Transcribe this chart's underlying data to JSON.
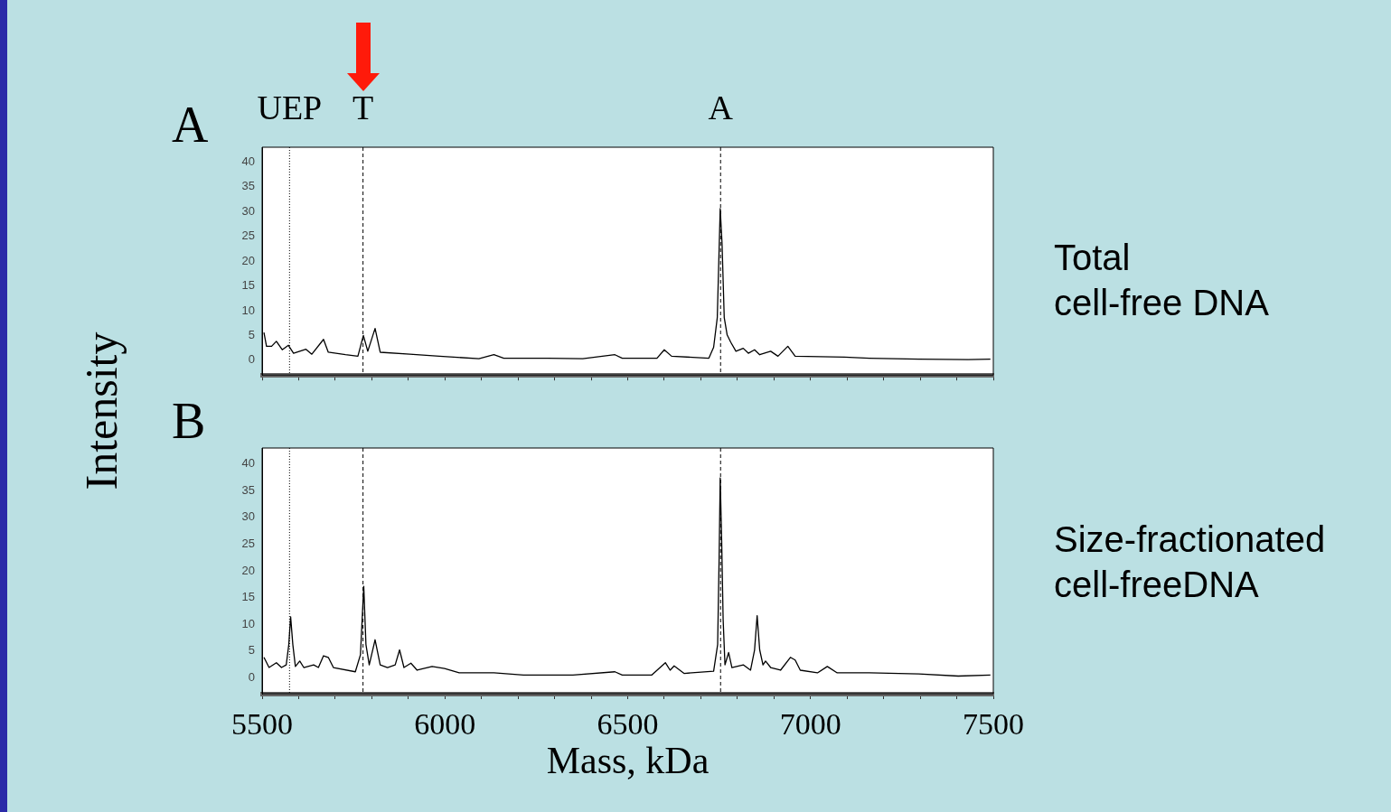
{
  "chart_data": [
    {
      "type": "line",
      "title": "A",
      "ylabel": "Intensity",
      "annotations": [
        "Total\ncell-free DNA"
      ],
      "tick_labels": "y",
      "color": "#000000",
      "xlim": [
        5500,
        7500
      ],
      "ylim": [
        -3,
        43
      ],
      "xticks": [
        {
          "value": 5500,
          "label": null
        },
        {
          "value": 5600,
          "label": null
        },
        {
          "value": 5700,
          "label": null
        },
        {
          "value": 5800,
          "label": null
        },
        {
          "value": 5900,
          "label": null
        },
        {
          "value": 6000,
          "label": null
        },
        {
          "value": 6100,
          "label": null
        },
        {
          "value": 6200,
          "label": null
        },
        {
          "value": 6300,
          "label": null
        },
        {
          "value": 6400,
          "label": null
        },
        {
          "value": 6500,
          "label": null
        },
        {
          "value": 6600,
          "label": null
        },
        {
          "value": 6700,
          "label": null
        },
        {
          "value": 6800,
          "label": null
        },
        {
          "value": 6900,
          "label": null
        },
        {
          "value": 7000,
          "label": null
        },
        {
          "value": 7100,
          "label": null
        },
        {
          "value": 7200,
          "label": null
        },
        {
          "value": 7300,
          "label": null
        },
        {
          "value": 7400,
          "label": null
        },
        {
          "value": 7500,
          "label": null
        }
      ],
      "yticks": [
        0,
        5,
        10,
        15,
        20,
        25,
        30,
        35,
        40
      ],
      "ref_lines": [
        {
          "axis": "x",
          "value": 5575,
          "label": "UEP",
          "line_style": "dotted",
          "color": "#000000"
        },
        {
          "axis": "x",
          "value": 5776,
          "label": "T",
          "line_style": "dashed",
          "color": "#000000"
        },
        {
          "axis": "x",
          "value": 6754,
          "label": "A",
          "line_style": "dashed",
          "color": "#000000"
        }
      ],
      "x": [
        5505,
        5512,
        5526,
        5539,
        5555,
        5572,
        5586,
        5620,
        5636,
        5668,
        5681,
        5728,
        5762,
        5777,
        5789,
        5809,
        5823,
        5904,
        5985,
        6093,
        6134,
        6161,
        6282,
        6377,
        6465,
        6485,
        6580,
        6600,
        6620,
        6722,
        6735,
        6745,
        6749,
        6753,
        6758,
        6764,
        6772,
        6782,
        6796,
        6816,
        6830,
        6847,
        6861,
        6891,
        6911,
        6938,
        6958,
        7093,
        7161,
        7296,
        7431,
        7492
      ],
      "values": [
        5.6,
        2.8,
        2.8,
        3.8,
        2.1,
        3.0,
        1.4,
        2.2,
        1.2,
        4.2,
        1.6,
        1.1,
        0.8,
        5.0,
        1.8,
        6.4,
        1.6,
        1.2,
        0.8,
        0.3,
        1.1,
        0.4,
        0.4,
        0.3,
        1.1,
        0.4,
        0.4,
        2.1,
        0.8,
        0.4,
        2.6,
        8.6,
        19.6,
        30.6,
        23.6,
        8.6,
        5.1,
        3.6,
        1.8,
        2.4,
        1.4,
        2.1,
        1.1,
        1.8,
        0.8,
        2.8,
        0.8,
        0.6,
        0.4,
        0.2,
        0.1,
        0.2
      ]
    },
    {
      "type": "line",
      "title": "B",
      "xlabel": "Mass, kDa",
      "annotations": [
        "Size-fractionated\ncell-freeDNA"
      ],
      "color": "#000000",
      "xlim": [
        5500,
        7500
      ],
      "ylim": [
        -3,
        43
      ],
      "xticks": [
        5500,
        {
          "value": 5600,
          "label": null
        },
        {
          "value": 5700,
          "label": null
        },
        {
          "value": 5800,
          "label": null
        },
        {
          "value": 5900,
          "label": null
        },
        6000,
        {
          "value": 6100,
          "label": null
        },
        {
          "value": 6200,
          "label": null
        },
        {
          "value": 6300,
          "label": null
        },
        {
          "value": 6400,
          "label": null
        },
        6500,
        {
          "value": 6600,
          "label": null
        },
        {
          "value": 6700,
          "label": null
        },
        {
          "value": 6800,
          "label": null
        },
        {
          "value": 6900,
          "label": null
        },
        7000,
        {
          "value": 7100,
          "label": null
        },
        {
          "value": 7200,
          "label": null
        },
        {
          "value": 7300,
          "label": null
        },
        {
          "value": 7400,
          "label": null
        },
        7500
      ],
      "yticks": [
        0,
        5,
        10,
        15,
        20,
        25,
        30,
        35,
        40
      ],
      "ref_lines": [
        {
          "axis": "x",
          "value": 5575,
          "line_style": "dotted",
          "color": "#000000"
        },
        {
          "axis": "x",
          "value": 5776,
          "line_style": "dashed",
          "color": "#000000"
        },
        {
          "axis": "x",
          "value": 6754,
          "line_style": "dashed",
          "color": "#000000"
        }
      ],
      "x": [
        5505,
        5519,
        5539,
        5553,
        5566,
        5573,
        5578,
        5584,
        5591,
        5603,
        5614,
        5641,
        5654,
        5668,
        5681,
        5695,
        5755,
        5769,
        5774,
        5778,
        5784,
        5793,
        5809,
        5823,
        5843,
        5864,
        5876,
        5888,
        5907,
        5924,
        5965,
        5999,
        6039,
        6134,
        6215,
        6350,
        6465,
        6485,
        6566,
        6603,
        6616,
        6627,
        6654,
        6735,
        6746,
        6750,
        6753,
        6757,
        6761,
        6766,
        6776,
        6785,
        6816,
        6836,
        6847,
        6854,
        6861,
        6870,
        6877,
        6891,
        6918,
        6945,
        6958,
        6972,
        7019,
        7046,
        7073,
        7161,
        7296,
        7404,
        7492
      ],
      "values": [
        3.8,
        1.9,
        2.8,
        1.9,
        2.4,
        6.2,
        11.4,
        6.2,
        2.1,
        3.1,
        1.9,
        2.4,
        1.9,
        4.1,
        3.8,
        1.9,
        1.1,
        4.3,
        11.4,
        17.1,
        6.2,
        2.4,
        7.1,
        2.4,
        1.9,
        2.4,
        5.2,
        1.9,
        2.7,
        1.4,
        2.1,
        1.7,
        0.9,
        0.9,
        0.5,
        0.5,
        1.1,
        0.5,
        0.5,
        2.8,
        1.4,
        2.2,
        0.8,
        1.2,
        6.2,
        22.3,
        37.4,
        25.6,
        10.9,
        2.4,
        4.7,
        1.9,
        2.4,
        1.4,
        5.2,
        11.6,
        5.2,
        2.4,
        3.1,
        1.9,
        1.4,
        3.8,
        3.3,
        1.4,
        0.9,
        2.1,
        0.9,
        0.9,
        0.7,
        0.3,
        0.5
      ]
    }
  ]
}
